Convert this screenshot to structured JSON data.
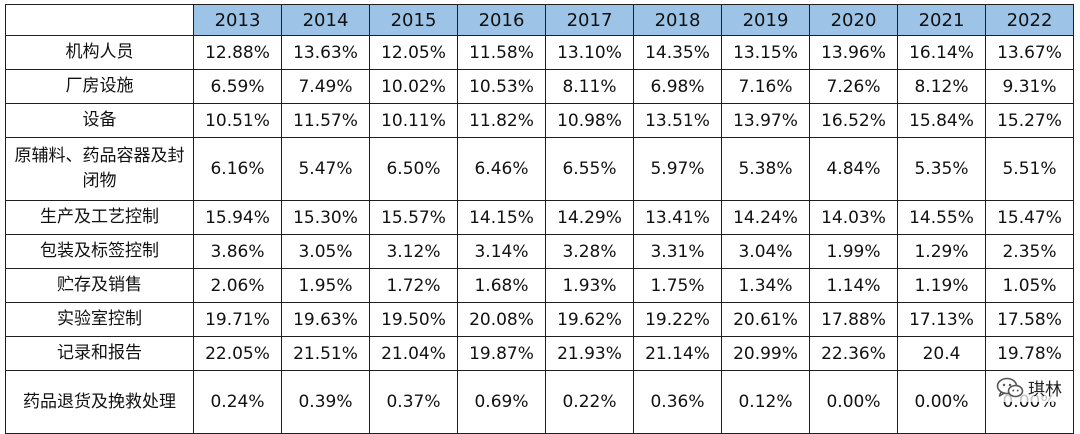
{
  "table": {
    "corner": "",
    "years": [
      "2013",
      "2014",
      "2015",
      "2016",
      "2017",
      "2018",
      "2019",
      "2020",
      "2021",
      "2022"
    ],
    "rows": [
      {
        "label": "机构人员",
        "values": [
          "12.88%",
          "13.63%",
          "12.05%",
          "11.58%",
          "13.10%",
          "14.35%",
          "13.15%",
          "13.96%",
          "16.14%",
          "13.67%"
        ]
      },
      {
        "label": "厂房设施",
        "values": [
          "6.59%",
          "7.49%",
          "10.02%",
          "10.53%",
          "8.11%",
          "6.98%",
          "7.16%",
          "7.26%",
          "8.12%",
          "9.31%"
        ]
      },
      {
        "label": "设备",
        "values": [
          "10.51%",
          "11.57%",
          "10.11%",
          "11.82%",
          "10.98%",
          "13.51%",
          "13.97%",
          "16.52%",
          "15.84%",
          "15.27%"
        ]
      },
      {
        "label": "原辅料、药品容器及封闭物",
        "values": [
          "6.16%",
          "5.47%",
          "6.50%",
          "6.46%",
          "6.55%",
          "5.97%",
          "5.38%",
          "4.84%",
          "5.35%",
          "5.51%"
        ]
      },
      {
        "label": "生产及工艺控制",
        "values": [
          "15.94%",
          "15.30%",
          "15.57%",
          "14.15%",
          "14.29%",
          "13.41%",
          "14.24%",
          "14.03%",
          "14.55%",
          "15.47%"
        ]
      },
      {
        "label": "包装及标签控制",
        "values": [
          "3.86%",
          "3.05%",
          "3.12%",
          "3.14%",
          "3.28%",
          "3.31%",
          "3.04%",
          "1.99%",
          "1.29%",
          "2.35%"
        ]
      },
      {
        "label": "贮存及销售",
        "values": [
          "2.06%",
          "1.95%",
          "1.72%",
          "1.68%",
          "1.93%",
          "1.75%",
          "1.34%",
          "1.14%",
          "1.19%",
          "1.05%"
        ]
      },
      {
        "label": "实验室控制",
        "values": [
          "19.71%",
          "19.63%",
          "19.50%",
          "20.08%",
          "19.62%",
          "19.22%",
          "20.61%",
          "17.88%",
          "17.13%",
          "17.58%"
        ]
      },
      {
        "label": "记录和报告",
        "values": [
          "22.05%",
          "21.51%",
          "21.04%",
          "19.87%",
          "21.93%",
          "21.14%",
          "20.99%",
          "22.36%",
          "20.4",
          "19.78%"
        ]
      },
      {
        "label": "药品退货及挽救处理",
        "values": [
          "0.24%",
          "0.39%",
          "0.37%",
          "0.69%",
          "0.22%",
          "0.36%",
          "0.12%",
          "0.00%",
          "0.00%",
          "0.00%"
        ]
      }
    ]
  },
  "watermark": {
    "text": "琪林",
    "icon": "wechat-icon"
  },
  "colors": {
    "header_bg": "#9dc3e6",
    "border": "#1f1f1f",
    "text": "#111111"
  }
}
